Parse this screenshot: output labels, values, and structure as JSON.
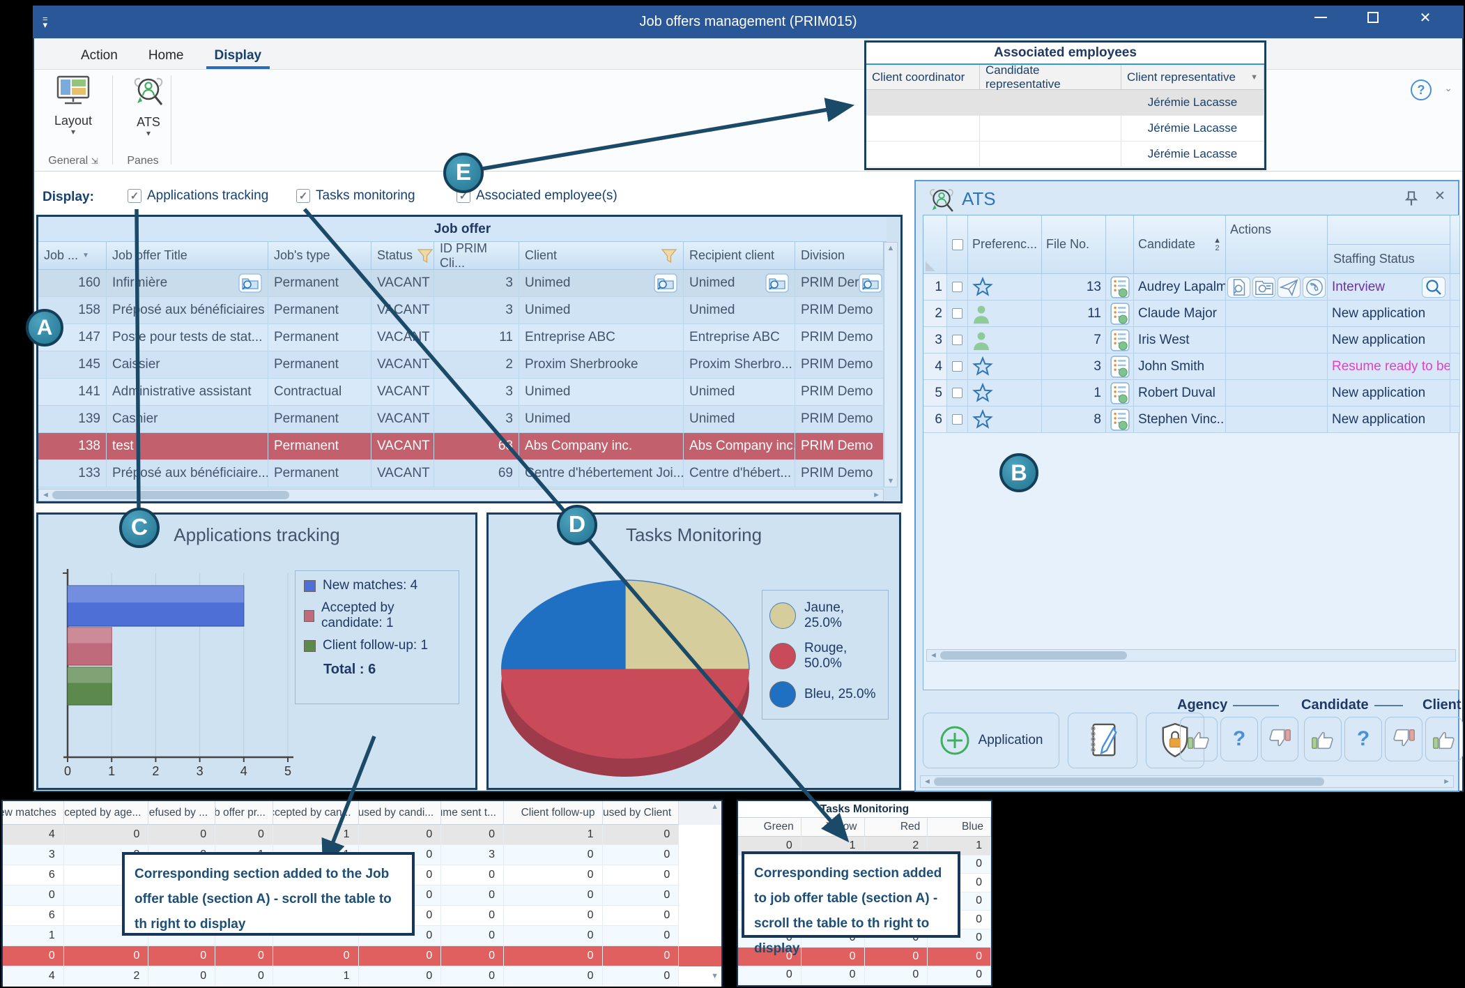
{
  "window": {
    "title": "Job offers management (PRIM015)"
  },
  "ribbon": {
    "tabs": [
      {
        "label": "Action",
        "active": false
      },
      {
        "label": "Home",
        "active": false
      },
      {
        "label": "Display",
        "active": true
      }
    ],
    "layout_button": "Layout",
    "ats_button": "ATS",
    "group_general": "General",
    "group_panes": "Panes"
  },
  "display_bar": {
    "label": "Display:",
    "checkboxes": [
      {
        "label": "Applications tracking",
        "checked": true
      },
      {
        "label": "Tasks monitoring",
        "checked": true
      },
      {
        "label": "Associated employee(s)",
        "checked": true
      }
    ]
  },
  "associated_employees": {
    "title": "Associated employees",
    "columns": [
      "Client coordinator",
      "Candidate representative",
      "Client representative"
    ],
    "rows": [
      {
        "client_coordinator": "",
        "candidate_representative": "",
        "client_representative": "Jérémie Lacasse",
        "highlight": true
      },
      {
        "client_coordinator": "",
        "candidate_representative": "",
        "client_representative": "Jérémie Lacasse",
        "highlight": false
      },
      {
        "client_coordinator": "",
        "candidate_representative": "",
        "client_representative": "Jérémie Lacasse",
        "highlight": false
      }
    ]
  },
  "job_offer": {
    "title": "Job offer",
    "columns": [
      "Job ...",
      "Job offer Title",
      "Job's type",
      "Status",
      "ID PRIM Cli...",
      "Client",
      "Recipient client",
      "Division"
    ],
    "rows": [
      {
        "id": "160",
        "title": "Infirmière",
        "type": "Permanent",
        "status": "VACANT",
        "id_prim": "3",
        "client": "Unimed",
        "recipient": "Unimed",
        "division": "PRIM Der",
        "selected": true,
        "icons": true
      },
      {
        "id": "158",
        "title": "Préposé aux bénéficiaires",
        "type": "Permanent",
        "status": "VACANT",
        "id_prim": "3",
        "client": "Unimed",
        "recipient": "Unimed",
        "division": "PRIM Demo"
      },
      {
        "id": "147",
        "title": "Poste pour tests de stat...",
        "type": "Permanent",
        "status": "VACANT",
        "id_prim": "11",
        "client": "Entreprise ABC",
        "recipient": "Entreprise ABC",
        "division": "PRIM Demo"
      },
      {
        "id": "145",
        "title": "Caissier",
        "type": "Permanent",
        "status": "VACANT",
        "id_prim": "2",
        "client": "Proxim Sherbrooke",
        "recipient": "Proxim Sherbro...",
        "division": "PRIM Demo"
      },
      {
        "id": "141",
        "title": "Administrative assistant",
        "type": "Contractual",
        "status": "VACANT",
        "id_prim": "3",
        "client": "Unimed",
        "recipient": "Unimed",
        "division": "PRIM Demo"
      },
      {
        "id": "139",
        "title": "Cashier",
        "type": "Permanent",
        "status": "VACANT",
        "id_prim": "3",
        "client": "Unimed",
        "recipient": "Unimed",
        "division": "PRIM Demo"
      },
      {
        "id": "138",
        "title": "test",
        "type": "Permanent",
        "status": "VACANT",
        "id_prim": "68",
        "client": "Abs Company inc.",
        "recipient": "Abs Company inc.",
        "division": "PRIM Demo",
        "flagged": true
      },
      {
        "id": "133",
        "title": "Préposé aux bénéficiaire...",
        "type": "Permanent",
        "status": "VACANT",
        "id_prim": "69",
        "client": "Centre d'hébertement Joi...",
        "recipient": "Centre d'hébert...",
        "division": "PRIM Demo"
      }
    ]
  },
  "ats": {
    "title": "ATS",
    "columns": {
      "preference": "Preferenc...",
      "file_no": "File No.",
      "candidate": "Candidate",
      "actions": "Actions",
      "staffing": "Staffing Status"
    },
    "sort_badge": "2",
    "rows": [
      {
        "num": "1",
        "pref": "star",
        "file_no": "13",
        "candidate": "Audrey Lapalme",
        "has_actions": true,
        "staffing": "Interview",
        "staffing_color": "#7030a0",
        "has_search": true
      },
      {
        "num": "2",
        "pref": "person",
        "file_no": "11",
        "candidate": "Claude Major",
        "staffing": "New application",
        "staffing_color": "#1f3864"
      },
      {
        "num": "3",
        "pref": "person",
        "file_no": "7",
        "candidate": "Iris  West",
        "staffing": "New application",
        "staffing_color": "#1f3864"
      },
      {
        "num": "4",
        "pref": "star",
        "file_no": "3",
        "candidate": "John Smith",
        "staffing": "Resume ready to be ...",
        "staffing_color": "#e93cc8"
      },
      {
        "num": "5",
        "pref": "star",
        "file_no": "1",
        "candidate": "Robert Duval",
        "staffing": "New application",
        "staffing_color": "#1f3864"
      },
      {
        "num": "6",
        "pref": "star",
        "file_no": "8",
        "candidate": "Stephen Vinc...",
        "staffing": "New application",
        "staffing_color": "#1f3864"
      }
    ],
    "toolbar": {
      "application": "Application",
      "groups": [
        "Agency",
        "Candidate",
        "Client"
      ]
    }
  },
  "chart_data": [
    {
      "id": "applications_tracking",
      "type": "bar",
      "orientation": "horizontal",
      "title": "Applications tracking",
      "categories": [
        "New matches",
        "Accepted by candidate",
        "Client follow-up"
      ],
      "values": [
        4,
        1,
        1
      ],
      "colors": [
        "#4d6fd6",
        "#bf6b7c",
        "#5c8a4d"
      ],
      "xlim": [
        0,
        5
      ],
      "xticks": [
        "0",
        "1",
        "2",
        "3",
        "4",
        "5"
      ],
      "grid": true,
      "legend": [
        "New matches: 4",
        "Accepted by candidate: 1",
        "Client follow-up: 1"
      ],
      "total_label": "Total : 6",
      "legend_position": "right"
    },
    {
      "id": "tasks_monitoring",
      "type": "pie",
      "title": "Tasks Monitoring",
      "labels": [
        "Jaune",
        "Rouge",
        "Bleu"
      ],
      "values": [
        25.0,
        50.0,
        25.0
      ],
      "colors": [
        "#d5cd9b",
        "#c94a59",
        "#1f70c2"
      ],
      "legend": [
        "Jaune, 25.0%",
        "Rouge, 50.0%",
        "Bleu, 25.0%"
      ],
      "legend_position": "right"
    }
  ],
  "bottom_left_table": {
    "columns": [
      "New matches",
      "Accepted by age...",
      "Refused by ...",
      "Job offer pr...",
      "Accepted by can...",
      "Refused by candi...",
      "Resume sent t...",
      "Client follow-up",
      "Refused by Client"
    ],
    "rows": [
      {
        "cells": [
          "4",
          "0",
          "0",
          "0",
          "1",
          "0",
          "0",
          "1",
          "0"
        ],
        "highlight": "gray"
      },
      {
        "cells": [
          "3",
          "2",
          "2",
          "1",
          "1",
          "0",
          "3",
          "0",
          "0"
        ],
        "highlight": ""
      },
      {
        "cells": [
          "6",
          "",
          "",
          "",
          "",
          "0",
          "0",
          "0",
          "0"
        ],
        "highlight": ""
      },
      {
        "cells": [
          "0",
          "",
          "",
          "",
          "",
          "0",
          "0",
          "0",
          "0"
        ],
        "highlight": ""
      },
      {
        "cells": [
          "6",
          "",
          "",
          "",
          "",
          "0",
          "0",
          "0",
          "0"
        ],
        "highlight": ""
      },
      {
        "cells": [
          "1",
          "",
          "",
          "",
          "",
          "0",
          "0",
          "0",
          "0"
        ],
        "highlight": ""
      },
      {
        "cells": [
          "0",
          "0",
          "0",
          "0",
          "0",
          "0",
          "0",
          "0",
          "0"
        ],
        "highlight": "red"
      },
      {
        "cells": [
          "4",
          "2",
          "0",
          "0",
          "1",
          "0",
          "0",
          "0",
          "0"
        ],
        "highlight": ""
      }
    ]
  },
  "bottom_right_table": {
    "title": "Tasks Monitoring",
    "columns": [
      "Green",
      "Yellow",
      "Red",
      "Blue"
    ],
    "rows": [
      {
        "cells": [
          "0",
          "1",
          "2",
          "1"
        ],
        "highlight": "gray"
      },
      {
        "cells": [
          "",
          "",
          "",
          "0"
        ],
        "highlight": ""
      },
      {
        "cells": [
          "",
          "",
          "",
          "0"
        ],
        "highlight": ""
      },
      {
        "cells": [
          "",
          "",
          "",
          "0"
        ],
        "highlight": ""
      },
      {
        "cells": [
          "",
          "",
          "",
          "0"
        ],
        "highlight": ""
      },
      {
        "cells": [
          "0",
          "0",
          "0",
          "0"
        ],
        "highlight": ""
      },
      {
        "cells": [
          "0",
          "0",
          "0",
          "0"
        ],
        "highlight": "red"
      },
      {
        "cells": [
          "0",
          "0",
          "0",
          "0"
        ],
        "highlight": ""
      }
    ]
  },
  "annotations": {
    "badges": [
      "A",
      "B",
      "C",
      "D",
      "E"
    ],
    "left_note": "Corresponding section added to the Job offer table (section A) - scroll the table to th right to display",
    "right_note": "Corresponding section added to job offer table (section A) -  scroll the table to th right to display"
  }
}
